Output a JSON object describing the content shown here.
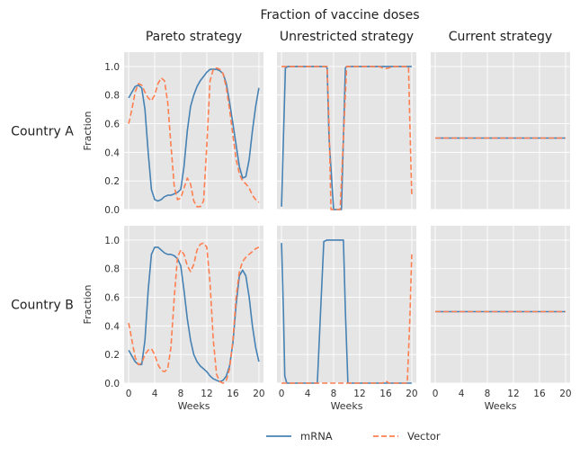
{
  "chart_data": {
    "type": "line",
    "title": "Fraction of vaccine doses",
    "columns": [
      "Pareto strategy",
      "Unrestricted strategy",
      "Current strategy"
    ],
    "rows": [
      "Country A",
      "Country B"
    ],
    "xlabel": "Weeks",
    "ylabel": "Fraction",
    "xlim": [
      -0.7,
      20.7
    ],
    "ylim": [
      0,
      1.1
    ],
    "xticks": [
      0,
      4,
      8,
      12,
      16,
      20
    ],
    "yticks": [
      "0.0",
      "0.2",
      "0.4",
      "0.6",
      "0.8",
      "1.0"
    ],
    "grid": true,
    "legend": {
      "position": "bottom-center",
      "entries": [
        {
          "name": "mRNA",
          "color": "#4682b4",
          "style": "solid"
        },
        {
          "name": "Vector",
          "color": "#ff7f50",
          "style": "dashed"
        }
      ]
    },
    "panels": [
      {
        "row": "Country A",
        "column": "Pareto strategy",
        "series": [
          {
            "name": "mRNA",
            "x": [
              0,
              0.5,
              1,
              1.5,
              2,
              2.5,
              3,
              3.5,
              4,
              4.5,
              5,
              5.5,
              6,
              6.5,
              7,
              7.5,
              8,
              8.5,
              9,
              9.5,
              10,
              10.5,
              11,
              11.5,
              12,
              12.5,
              13,
              13.5,
              14,
              14.5,
              15,
              15.5,
              16,
              16.5,
              17,
              17.5,
              18,
              18.5,
              19,
              19.5,
              20
            ],
            "y": [
              0.78,
              0.82,
              0.86,
              0.87,
              0.85,
              0.7,
              0.4,
              0.14,
              0.07,
              0.06,
              0.07,
              0.09,
              0.1,
              0.1,
              0.11,
              0.12,
              0.14,
              0.3,
              0.55,
              0.72,
              0.8,
              0.86,
              0.9,
              0.93,
              0.96,
              0.98,
              0.98,
              0.98,
              0.97,
              0.95,
              0.88,
              0.75,
              0.6,
              0.45,
              0.3,
              0.22,
              0.23,
              0.35,
              0.55,
              0.72,
              0.85
            ]
          },
          {
            "name": "Vector",
            "x": [
              0,
              0.5,
              1,
              1.5,
              2,
              2.5,
              3,
              3.5,
              4,
              4.5,
              5,
              5.5,
              6,
              6.5,
              7,
              7.5,
              8,
              8.5,
              9,
              9.5,
              10,
              10.5,
              11,
              11.5,
              12,
              12.5,
              13,
              13.5,
              14,
              14.5,
              15,
              15.5,
              16,
              16.5,
              17,
              17.5,
              18,
              18.5,
              19,
              19.5,
              20
            ],
            "y": [
              0.6,
              0.7,
              0.82,
              0.88,
              0.87,
              0.82,
              0.78,
              0.76,
              0.8,
              0.88,
              0.92,
              0.9,
              0.75,
              0.45,
              0.16,
              0.07,
              0.08,
              0.15,
              0.22,
              0.18,
              0.06,
              0.02,
              0.02,
              0.06,
              0.45,
              0.9,
              0.98,
              0.99,
              0.98,
              0.95,
              0.85,
              0.7,
              0.52,
              0.35,
              0.25,
              0.2,
              0.18,
              0.15,
              0.1,
              0.07,
              0.05
            ]
          }
        ]
      },
      {
        "row": "Country A",
        "column": "Unrestricted strategy",
        "series": [
          {
            "name": "mRNA",
            "x": [
              0,
              0.3,
              0.6,
              1,
              6.8,
              7,
              7.3,
              8,
              9.2,
              9.5,
              9.8,
              10,
              20
            ],
            "y": [
              0.02,
              0.5,
              0.99,
              1.0,
              1.0,
              0.99,
              0.5,
              0.0,
              0.0,
              0.5,
              0.99,
              1.0,
              1.0
            ]
          },
          {
            "name": "Vector",
            "x": [
              0,
              1,
              6.5,
              7,
              7.3,
              7.6,
              8,
              9,
              9.5,
              10,
              15,
              15.5,
              16,
              16.5,
              17,
              19.5,
              19.7,
              20
            ],
            "y": [
              1.0,
              1.0,
              1.0,
              1.0,
              0.6,
              0.0,
              0.0,
              0.0,
              0.5,
              1.0,
              1.0,
              0.99,
              0.985,
              0.99,
              1.0,
              1.0,
              0.6,
              0.1
            ]
          }
        ]
      },
      {
        "row": "Country A",
        "column": "Current strategy",
        "series": [
          {
            "name": "mRNA",
            "x": [
              0,
              20
            ],
            "y": [
              0.5,
              0.5
            ]
          },
          {
            "name": "Vector",
            "x": [
              0,
              20
            ],
            "y": [
              0.5,
              0.5
            ]
          }
        ]
      },
      {
        "row": "Country B",
        "column": "Pareto strategy",
        "series": [
          {
            "name": "mRNA",
            "x": [
              0,
              0.5,
              1,
              1.5,
              2,
              2.5,
              3,
              3.5,
              4,
              4.5,
              5,
              5.5,
              6,
              6.5,
              7,
              7.5,
              8,
              8.5,
              9,
              9.5,
              10,
              10.5,
              11,
              11.5,
              12,
              12.5,
              13,
              13.5,
              14,
              14.5,
              15,
              15.5,
              16,
              16.5,
              17,
              17.5,
              18,
              18.5,
              19,
              19.5,
              20
            ],
            "y": [
              0.23,
              0.19,
              0.15,
              0.13,
              0.13,
              0.3,
              0.65,
              0.9,
              0.95,
              0.95,
              0.93,
              0.91,
              0.9,
              0.9,
              0.89,
              0.87,
              0.82,
              0.65,
              0.45,
              0.3,
              0.2,
              0.15,
              0.12,
              0.1,
              0.08,
              0.05,
              0.03,
              0.02,
              0.01,
              0.02,
              0.05,
              0.12,
              0.28,
              0.55,
              0.75,
              0.79,
              0.75,
              0.6,
              0.4,
              0.25,
              0.15
            ]
          },
          {
            "name": "Vector",
            "x": [
              0,
              0.5,
              1,
              1.5,
              2,
              2.5,
              3,
              3.5,
              4,
              4.5,
              5,
              5.5,
              6,
              6.5,
              7,
              7.5,
              8,
              8.5,
              9,
              9.5,
              10,
              10.5,
              11,
              11.5,
              12,
              12.5,
              13,
              13.5,
              14,
              14.5,
              15,
              15.5,
              16,
              16.5,
              17,
              17.5,
              18,
              18.5,
              19,
              19.5,
              20
            ],
            "y": [
              0.42,
              0.3,
              0.18,
              0.13,
              0.14,
              0.2,
              0.23,
              0.24,
              0.2,
              0.13,
              0.09,
              0.08,
              0.1,
              0.25,
              0.6,
              0.88,
              0.93,
              0.9,
              0.82,
              0.78,
              0.83,
              0.93,
              0.97,
              0.98,
              0.95,
              0.7,
              0.3,
              0.06,
              0.01,
              0.0,
              0.02,
              0.1,
              0.3,
              0.6,
              0.78,
              0.85,
              0.88,
              0.9,
              0.92,
              0.94,
              0.95
            ]
          }
        ]
      },
      {
        "row": "Country B",
        "column": "Unrestricted strategy",
        "series": [
          {
            "name": "mRNA",
            "x": [
              0,
              0.3,
              0.5,
              0.8,
              3.0,
              5.5,
              6.0,
              6.5,
              7,
              9.5,
              9.8,
              10.2,
              20
            ],
            "y": [
              0.98,
              0.5,
              0.05,
              0.0,
              0.0,
              0.0,
              0.5,
              0.99,
              1.0,
              1.0,
              0.5,
              0.0,
              0.0
            ]
          },
          {
            "name": "Vector",
            "x": [
              0,
              0.2,
              0.5,
              1,
              6,
              15.5,
              16,
              16.5,
              19.3,
              19.7,
              20
            ],
            "y": [
              0.0,
              0.0,
              0.0,
              0.0,
              0.0,
              0.0,
              0.015,
              0.0,
              0.0,
              0.45,
              0.9
            ]
          }
        ]
      },
      {
        "row": "Country B",
        "column": "Current strategy",
        "series": [
          {
            "name": "mRNA",
            "x": [
              0,
              20
            ],
            "y": [
              0.5,
              0.5
            ]
          },
          {
            "name": "Vector",
            "x": [
              0,
              20
            ],
            "y": [
              0.5,
              0.5
            ]
          }
        ]
      }
    ]
  }
}
